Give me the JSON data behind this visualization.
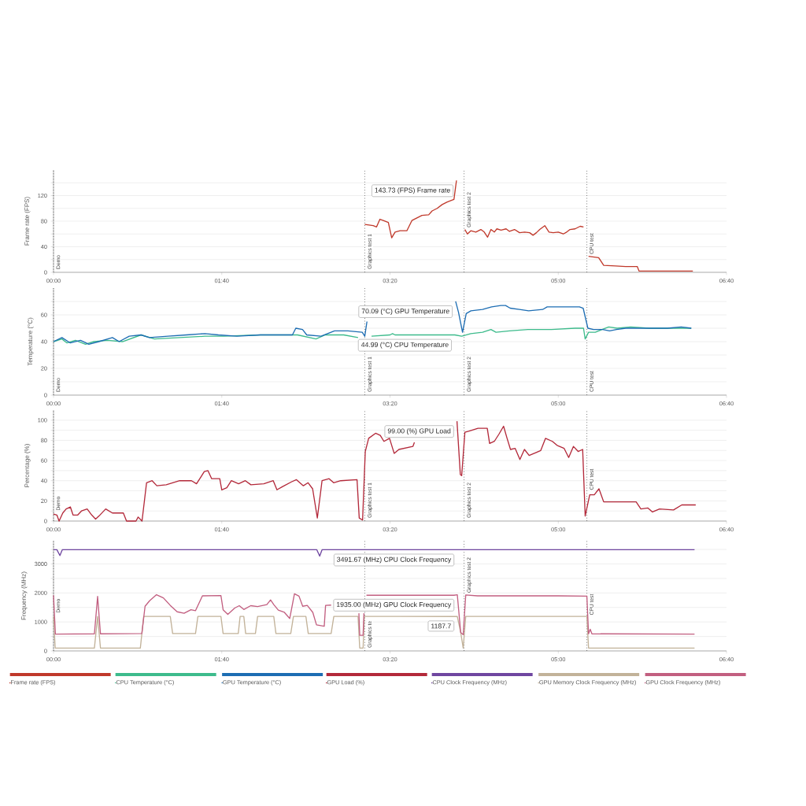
{
  "chart_data": [
    {
      "type": "line",
      "ylabel": "Frame rate (FPS)",
      "xlim": [
        0,
        400
      ],
      "xticks": [
        {
          "value": 0,
          "label": "00:00"
        },
        {
          "value": 100,
          "label": "01:40"
        },
        {
          "value": 200,
          "label": "03:20"
        },
        {
          "value": 300,
          "label": "05:00"
        },
        {
          "value": 400,
          "label": "06:40"
        }
      ],
      "ylim": [
        0,
        160
      ],
      "yticks": [
        0,
        {
          "value": 20,
          "label": null
        },
        40,
        {
          "value": 60,
          "label": null
        },
        80,
        {
          "value": 100,
          "label": null
        },
        120,
        {
          "value": 140,
          "label": null
        }
      ],
      "grid": "y",
      "legend": "bottom",
      "line_style": "solid",
      "ref_lines": [
        {
          "axis": "x",
          "value": 0,
          "label": "Demo",
          "color": "#333333",
          "line_style": "dotted"
        },
        {
          "axis": "x",
          "value": 185,
          "label": "Graphics test 1",
          "color": "#333333",
          "line_style": "dotted"
        },
        {
          "axis": "x",
          "value": 244,
          "label": "Graphics test 2",
          "color": "#333333",
          "line_style": "dotted"
        },
        {
          "axis": "x",
          "value": 317,
          "label": "CPU test",
          "color": "#333333",
          "line_style": "dotted"
        }
      ],
      "annotations": [
        {
          "text": "143.73 (FPS) Frame rate",
          "x": 239.5,
          "y": 143.73
        }
      ],
      "series": [
        {
          "name": "Frame rate (FPS)",
          "color": "#c0392b",
          "x": [
            185,
            190,
            192,
            194,
            196,
            199,
            201,
            203,
            206,
            210,
            213,
            216,
            219,
            223,
            225,
            228,
            231,
            234,
            237,
            238,
            239.5,
            242,
            244.5,
            246,
            248,
            251,
            254,
            256,
            258,
            260,
            262,
            263.5,
            266,
            269,
            271,
            274,
            277,
            280,
            283,
            285,
            287,
            289,
            292,
            294.5,
            297,
            300,
            303,
            305,
            307,
            310,
            313,
            315,
            316,
            318,
            324,
            327,
            334,
            340,
            347,
            348,
            380
          ],
          "values": [
            75,
            73,
            71,
            83,
            81,
            78,
            54,
            63,
            65,
            65,
            81,
            85,
            89,
            90,
            96,
            100,
            106,
            110,
            113,
            114,
            143.73,
            null,
            67,
            60,
            65,
            63,
            67,
            63,
            55,
            67,
            63,
            68,
            66,
            68,
            64,
            67,
            62,
            63,
            62,
            58,
            62,
            67,
            73,
            63,
            62,
            63,
            60,
            63,
            67,
            68,
            72,
            71,
            null,
            25,
            23,
            11,
            10,
            9,
            9,
            2,
            2
          ]
        }
      ]
    },
    {
      "type": "line",
      "ylabel": "Temperature (°C)",
      "xlim": [
        0,
        400
      ],
      "xticks": [
        {
          "value": 0,
          "label": "00:00"
        },
        {
          "value": 100,
          "label": "01:40"
        },
        {
          "value": 200,
          "label": "03:20"
        },
        {
          "value": 300,
          "label": "05:00"
        },
        {
          "value": 400,
          "label": "06:40"
        }
      ],
      "ylim": [
        0,
        80
      ],
      "yticks": [
        0,
        {
          "value": 10,
          "label": null
        },
        20,
        {
          "value": 30,
          "label": null
        },
        40,
        {
          "value": 50,
          "label": null
        },
        60,
        {
          "value": 70,
          "label": null
        }
      ],
      "grid": "y",
      "legend": "bottom",
      "line_style": "solid",
      "ref_lines": [
        {
          "axis": "x",
          "value": 0,
          "label": "Demo",
          "color": "#333333",
          "line_style": "dotted"
        },
        {
          "axis": "x",
          "value": 185,
          "label": "Graphics test 1",
          "color": "#333333",
          "line_style": "dotted"
        },
        {
          "axis": "x",
          "value": 244,
          "label": "Graphics test 2",
          "color": "#333333",
          "line_style": "dotted"
        },
        {
          "axis": "x",
          "value": 317,
          "label": "CPU test",
          "color": "#333333",
          "line_style": "dotted"
        }
      ],
      "annotations": [
        {
          "text": "70.09 (°C) GPU Temperature",
          "x": 239,
          "y": 70.09
        },
        {
          "text": "44.99 (°C) CPU Temperature",
          "x": 238.5,
          "y": 44.99
        }
      ],
      "series": [
        {
          "name": "CPU Temperature (°C)",
          "color": "#3dbb8c",
          "x": [
            0,
            5,
            8,
            13,
            19,
            24,
            32,
            41,
            52,
            60,
            90,
            101,
            123,
            134,
            145,
            156,
            161.5,
            172.5,
            181,
            185,
            189,
            200,
            201.5,
            203,
            219,
            228,
            238.5,
            242.6,
            248,
            255,
            260,
            263,
            271,
            282,
            296,
            310,
            315,
            316,
            318,
            322,
            326,
            330,
            335,
            343,
            354,
            365,
            379
          ],
          "values": [
            40,
            42,
            39,
            41,
            38,
            40,
            41,
            40,
            45,
            42,
            44,
            44,
            45,
            45,
            45,
            42,
            45,
            45,
            43,
            null,
            44,
            45,
            46,
            45,
            45,
            45,
            44.99,
            44,
            46,
            47,
            49,
            47,
            48,
            49,
            49,
            50,
            50,
            42,
            47,
            47,
            49,
            51,
            50,
            51,
            50,
            50,
            50
          ]
        },
        {
          "name": "GPU Temperature (°C)",
          "color": "#1d6db3",
          "x": [
            0,
            5,
            10,
            16,
            21,
            27,
            35,
            39,
            45,
            52,
            57,
            68,
            79,
            90,
            98,
            109,
            123,
            134,
            142,
            144,
            148,
            150.5,
            159,
            167,
            175,
            183.5,
            185,
            186.3,
            188,
            239,
            240.7,
            243.1,
            245.3,
            248.1,
            255,
            260.4,
            265.9,
            268.7,
            271.4,
            276.9,
            282.4,
            290.7,
            293.4,
            304.4,
            312.6,
            314.8,
            317.6,
            320.9,
            326.4,
            330.5,
            334.6,
            340.1,
            345.6,
            351.1,
            359.3,
            364.8,
            373.1,
            379.1
          ],
          "values": [
            40,
            43,
            39,
            41,
            38,
            40,
            43,
            40,
            44,
            45,
            43,
            44,
            45,
            46,
            45,
            44,
            45,
            45,
            45,
            50,
            49,
            45,
            44,
            48,
            48,
            47,
            44,
            55,
            null,
            70.09,
            62,
            47,
            61,
            63,
            64,
            66,
            67,
            67,
            65,
            64,
            63,
            64,
            66,
            66,
            66,
            65,
            50,
            49,
            49,
            48,
            49,
            50,
            50,
            50,
            50,
            50,
            51,
            50
          ]
        }
      ]
    },
    {
      "type": "line",
      "ylabel": "Percentage (%)",
      "xlim": [
        0,
        400
      ],
      "xticks": [
        {
          "value": 0,
          "label": "00:00"
        },
        {
          "value": 100,
          "label": "01:40"
        },
        {
          "value": 200,
          "label": "03:20"
        },
        {
          "value": 300,
          "label": "05:00"
        },
        {
          "value": 400,
          "label": "06:40"
        }
      ],
      "ylim": [
        0,
        110
      ],
      "yticks": [
        0,
        {
          "value": 10,
          "label": null
        },
        20,
        {
          "value": 30,
          "label": null
        },
        40,
        {
          "value": 50,
          "label": null
        },
        60,
        {
          "value": 70,
          "label": null
        },
        80,
        {
          "value": 90,
          "label": null
        },
        100
      ],
      "grid": "y",
      "legend": "bottom",
      "line_style": "solid",
      "ref_lines": [
        {
          "axis": "x",
          "value": 0,
          "label": "Demo",
          "color": "#333333",
          "line_style": "dotted"
        },
        {
          "axis": "x",
          "value": 185,
          "label": "Graphics test 1",
          "color": "#333333",
          "line_style": "dotted"
        },
        {
          "axis": "x",
          "value": 244,
          "label": "Graphics test 2",
          "color": "#333333",
          "line_style": "dotted"
        },
        {
          "axis": "x",
          "value": 317,
          "label": "CPU test",
          "color": "#333333",
          "line_style": "dotted"
        }
      ],
      "annotations": [
        {
          "text": "99.00 (%) GPU Load",
          "x": 239.8,
          "y": 99
        }
      ],
      "series": [
        {
          "name": "GPU Load (%)",
          "color": "#b3293a",
          "x": [
            0,
            2,
            3.3,
            5.5,
            7.5,
            10,
            11.6,
            14.4,
            16.6,
            20,
            22.7,
            25,
            27,
            31,
            35,
            41.5,
            43.4,
            49,
            50.3,
            52.6,
            55.3,
            58.6,
            61.4,
            67,
            75,
            82,
            85,
            87.7,
            89.6,
            91.8,
            94,
            98.8,
            100,
            103,
            105.7,
            110,
            114,
            117.3,
            125,
            130.6,
            132.8,
            136,
            141.6,
            144.4,
            148.5,
            151.3,
            154,
            156.8,
            159.6,
            163.8,
            166.5,
            170.7,
            180.4,
            181.7,
            183.7,
            185.3,
            187.3,
            191.4,
            194.2,
            196.4,
            199.7,
            202.5,
            205.3,
            213.6,
            214.5,
            216,
            239.8,
            241.8,
            242.6,
            244.5,
            246.7,
            252.3,
            257.8,
            259.2,
            262,
            264.7,
            267.5,
            269.4,
            271.6,
            274.4,
            277.2,
            279.9,
            282.7,
            286.9,
            289.6,
            292.4,
            296.5,
            299.3,
            303.5,
            306.2,
            309,
            311.8,
            314.5,
            316,
            318.7,
            321.4,
            324.2,
            327,
            338,
            346.3,
            349.1,
            353.2,
            356,
            360.2,
            368.5,
            373.4,
            381.7
          ],
          "values": [
            7,
            6,
            0,
            8,
            12,
            14,
            6,
            6,
            10,
            12,
            6,
            2,
            5,
            12,
            8,
            8,
            0,
            0,
            4,
            0,
            38,
            40,
            35,
            36,
            40,
            40,
            37,
            44,
            49,
            50,
            42,
            42,
            31,
            33,
            40,
            37,
            40,
            36,
            37,
            40,
            31,
            34,
            39,
            41,
            35,
            38,
            32,
            3,
            40,
            42,
            38,
            40,
            41,
            3,
            1,
            69,
            82,
            87,
            85,
            79,
            82,
            67,
            71,
            74,
            78,
            null,
            99,
            46,
            45,
            88,
            89,
            92,
            92,
            77,
            79,
            86,
            94,
            83,
            71,
            72,
            61,
            71,
            65,
            68,
            70,
            82,
            79,
            75,
            72,
            63,
            74,
            69,
            71,
            5,
            26,
            26,
            32,
            19,
            19,
            19,
            12,
            13,
            9,
            12,
            11,
            16,
            16
          ]
        }
      ]
    },
    {
      "type": "line",
      "ylabel": "Frequency (MHz)",
      "xlim": [
        0,
        400
      ],
      "xticks": [
        {
          "value": 0,
          "label": "00:00"
        },
        {
          "value": 100,
          "label": "01:40"
        },
        {
          "value": 200,
          "label": "03:20"
        },
        {
          "value": 300,
          "label": "05:00"
        },
        {
          "value": 400,
          "label": "06:40"
        }
      ],
      "ylim": [
        0,
        3800
      ],
      "yticks": [
        0,
        {
          "value": 500,
          "label": null
        },
        1000,
        {
          "value": 1500,
          "label": null
        },
        2000,
        {
          "value": 2500,
          "label": null
        },
        3000,
        {
          "value": 3500,
          "label": null
        }
      ],
      "grid": "y",
      "legend": "bottom",
      "line_style": "solid",
      "ref_lines": [
        {
          "axis": "x",
          "value": 0,
          "label": "Demo",
          "color": "#333333",
          "line_style": "dotted"
        },
        {
          "axis": "x",
          "value": 185,
          "label": "Graphics te",
          "color": "#333333",
          "line_style": "dotted"
        },
        {
          "axis": "x",
          "value": 244,
          "label": "Graphics test 2",
          "color": "#333333",
          "line_style": "dotted"
        },
        {
          "axis": "x",
          "value": 317,
          "label": "CPU test",
          "color": "#333333",
          "line_style": "dotted"
        }
      ],
      "annotations": [
        {
          "text": "3491.67 (MHz) CPU Clock Frequency",
          "x": 240,
          "y": 3491.67
        },
        {
          "text": "1935.00 (MHz) GPU Clock Frequency",
          "x": 240,
          "y": 1935
        },
        {
          "text": "1187.7",
          "x": 240,
          "y": 1187.7
        }
      ],
      "series": [
        {
          "name": "CPU Clock Frequency (MHz)",
          "color": "#6f46a0",
          "x": [
            0,
            2,
            3.8,
            5.2,
            156.5,
            158.2,
            159.6,
            240,
            381
          ],
          "values": [
            3490,
            3490,
            3290,
            3490,
            3490,
            3270,
            3490,
            3491.67,
            3490
          ]
        },
        {
          "name": "GPU Memory Clock Frequency (MHz)",
          "color": "#c2b299",
          "x": [
            0,
            1,
            24.3,
            26.2,
            27.9,
            51.6,
            53.6,
            69.4,
            70.8,
            84.4,
            85.8,
            99.5,
            100.8,
            109.8,
            110.9,
            113.1,
            114.2,
            120,
            121.3,
            130.9,
            132.2,
            141,
            142.6,
            150,
            151.4,
            165,
            166.6,
            181,
            182,
            184,
            184.7,
            240,
            242,
            243.5,
            245,
            317,
            318,
            381
          ],
          "values": [
            1190,
            100,
            100,
            1190,
            100,
            100,
            1190,
            1190,
            600,
            600,
            1190,
            1190,
            600,
            600,
            1190,
            1190,
            600,
            600,
            1190,
            1190,
            600,
            600,
            1190,
            1190,
            600,
            600,
            1190,
            1190,
            100,
            100,
            1190,
            1187.7,
            640,
            100,
            1190,
            1190,
            100,
            100
          ]
        },
        {
          "name": "GPU Clock Frequency (MHz)",
          "color": "#c25f80",
          "x": [
            0,
            1.1,
            24.3,
            26.2,
            27.9,
            52.5,
            54.4,
            57.1,
            61.2,
            65.3,
            69.4,
            73.5,
            77.6,
            81.7,
            84.4,
            88.5,
            99.5,
            100.8,
            103.6,
            107.7,
            110.4,
            113.1,
            117.2,
            121.3,
            126.8,
            129,
            130.9,
            133.6,
            137.2,
            140.4,
            143.2,
            145.9,
            148.1,
            150.8,
            154.1,
            156.3,
            160.9,
            161.7,
            165,
            167,
            181.5,
            182,
            184,
            184.5,
            185,
            186,
            238,
            240,
            242,
            243.5,
            245,
            252,
            300,
            317,
            318,
            319,
            320,
            381
          ],
          "values": [
            1920,
            580,
            590,
            1880,
            590,
            600,
            1540,
            1730,
            1940,
            1830,
            1570,
            1350,
            1300,
            1420,
            1390,
            1900,
            1910,
            1420,
            1260,
            1480,
            1560,
            1430,
            1560,
            1530,
            1600,
            1760,
            1600,
            1410,
            1330,
            1120,
            1970,
            1890,
            1540,
            1570,
            1330,
            900,
            850,
            1570,
            1580,
            null,
            1300,
            540,
            540,
            1300,
            null,
            1920,
            1920,
            1935,
            640,
            560,
            1930,
            1900,
            1900,
            1890,
            590,
            750,
            590,
            580
          ]
        }
      ]
    }
  ]
}
